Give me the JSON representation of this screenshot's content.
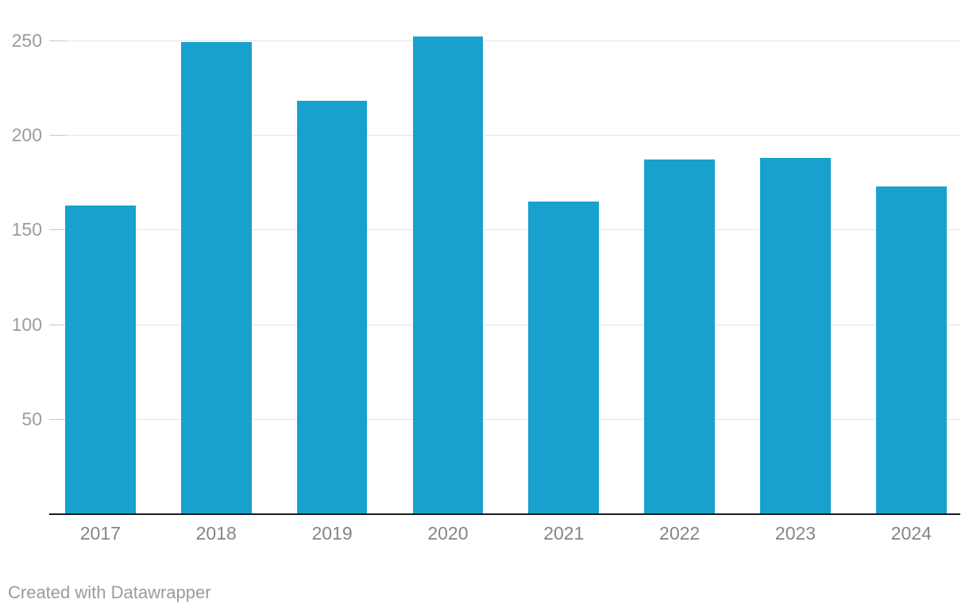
{
  "chart_data": {
    "type": "bar",
    "categories": [
      "2017",
      "2018",
      "2019",
      "2020",
      "2021",
      "2022",
      "2023",
      "2024"
    ],
    "values": [
      163,
      249,
      218,
      252,
      165,
      187,
      188,
      173
    ],
    "title": "",
    "xlabel": "",
    "ylabel": "",
    "ylim": [
      0,
      252
    ],
    "yticks": [
      50,
      100,
      150,
      200,
      250
    ],
    "grid": true,
    "legend": "none",
    "colors": {
      "bar": "#18a1cd",
      "gridline": "#e5e5e5",
      "tick_stub": "#c9c9c9",
      "axis_line": "#1a1a1a",
      "y_label": "#9c9c9c",
      "x_label": "#858585"
    }
  },
  "footer": {
    "attribution": "Created with Datawrapper"
  }
}
